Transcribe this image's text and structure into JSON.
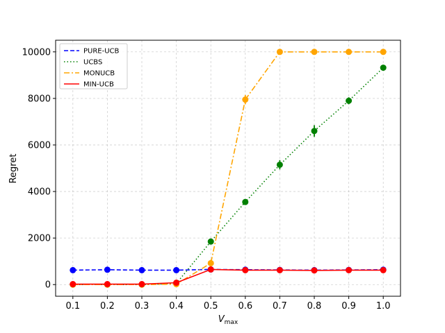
{
  "chart_data": {
    "type": "line",
    "xlabel_main": "V",
    "xlabel_sub": "max",
    "ylabel": "Regret",
    "xlim": [
      0.05,
      1.05
    ],
    "ylim": [
      -500,
      10500
    ],
    "x": [
      0.1,
      0.2,
      0.3,
      0.4,
      0.5,
      0.6,
      0.7,
      0.8,
      0.9,
      1.0
    ],
    "x_tick_labels": [
      "0.1",
      "0.2",
      "0.3",
      "0.4",
      "0.5",
      "0.6",
      "0.7",
      "0.8",
      "0.9",
      "1.0"
    ],
    "y_ticks": [
      0,
      2000,
      4000,
      6000,
      8000,
      10000
    ],
    "y_tick_labels": [
      "0",
      "2000",
      "4000",
      "6000",
      "8000",
      "10000"
    ],
    "grid": true,
    "legend_position": "top-left",
    "series": [
      {
        "name": "PURE-UCB",
        "color": "#0000ff",
        "dash": "dashed",
        "values": [
          620,
          640,
          620,
          620,
          650,
          640,
          630,
          620,
          630,
          640
        ],
        "errors": [
          0,
          0,
          0,
          0,
          0,
          0,
          0,
          0,
          0,
          0
        ]
      },
      {
        "name": "UCBS",
        "color": "#008000",
        "dash": "dotted",
        "values": [
          0,
          0,
          0,
          50,
          1850,
          3550,
          5150,
          6600,
          7900,
          9320
        ],
        "errors": [
          0,
          0,
          0,
          0,
          80,
          120,
          200,
          250,
          150,
          80
        ]
      },
      {
        "name": "MONUCB",
        "color": "#ffa500",
        "dash": "dashdot",
        "values": [
          0,
          0,
          0,
          20,
          920,
          7950,
          10000,
          10000,
          10000,
          10000
        ],
        "errors": [
          0,
          0,
          0,
          0,
          150,
          200,
          0,
          0,
          0,
          0
        ]
      },
      {
        "name": "MIN-UCB",
        "color": "#ff0000",
        "dash": "solid",
        "values": [
          20,
          20,
          20,
          80,
          650,
          620,
          620,
          610,
          620,
          620
        ],
        "errors": [
          0,
          0,
          0,
          0,
          0,
          0,
          0,
          0,
          0,
          0
        ]
      }
    ]
  }
}
